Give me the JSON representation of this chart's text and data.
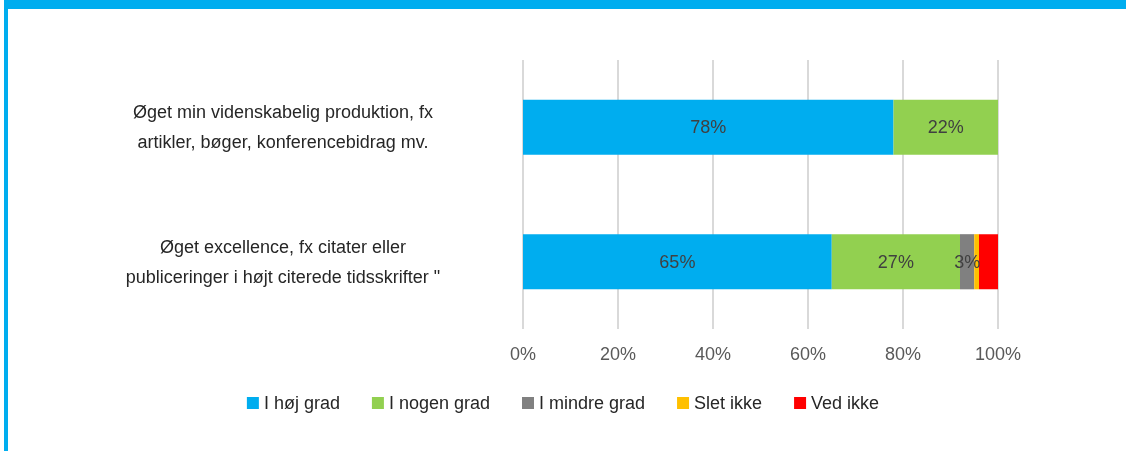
{
  "chart_data": {
    "type": "bar",
    "orientation": "horizontal",
    "stacked": true,
    "categories": [
      "Øget min videnskabelig produktion, fx\nartikler, bøger, konferencebidrag mv.",
      "Øget excellence, fx citater eller\npubliceringer i højt citerede tidsskrifter \""
    ],
    "series": [
      {
        "name": "I høj grad",
        "color": "#00adef",
        "values": [
          78,
          65
        ],
        "value_labels": [
          "78%",
          "65%"
        ]
      },
      {
        "name": "I nogen grad",
        "color": "#92d050",
        "values": [
          22,
          27
        ],
        "value_labels": [
          "22%",
          "27%"
        ]
      },
      {
        "name": "I mindre grad",
        "color": "#808080",
        "values": [
          0,
          3
        ],
        "value_labels": [
          null,
          "3%"
        ]
      },
      {
        "name": "Slet ikke",
        "color": "#ffc000",
        "values": [
          0,
          1
        ]
      },
      {
        "name": "Ved ikke",
        "color": "#ff0000",
        "values": [
          0,
          4
        ]
      }
    ],
    "xlim": [
      0,
      100
    ],
    "xticks": [
      {
        "value": 0,
        "label": "0%"
      },
      {
        "value": 20,
        "label": "20%"
      },
      {
        "value": 40,
        "label": "40%"
      },
      {
        "value": 60,
        "label": "60%"
      },
      {
        "value": 80,
        "label": "80%"
      },
      {
        "value": 100,
        "label": "100%"
      }
    ],
    "grid": "x",
    "legend": "bottom"
  }
}
